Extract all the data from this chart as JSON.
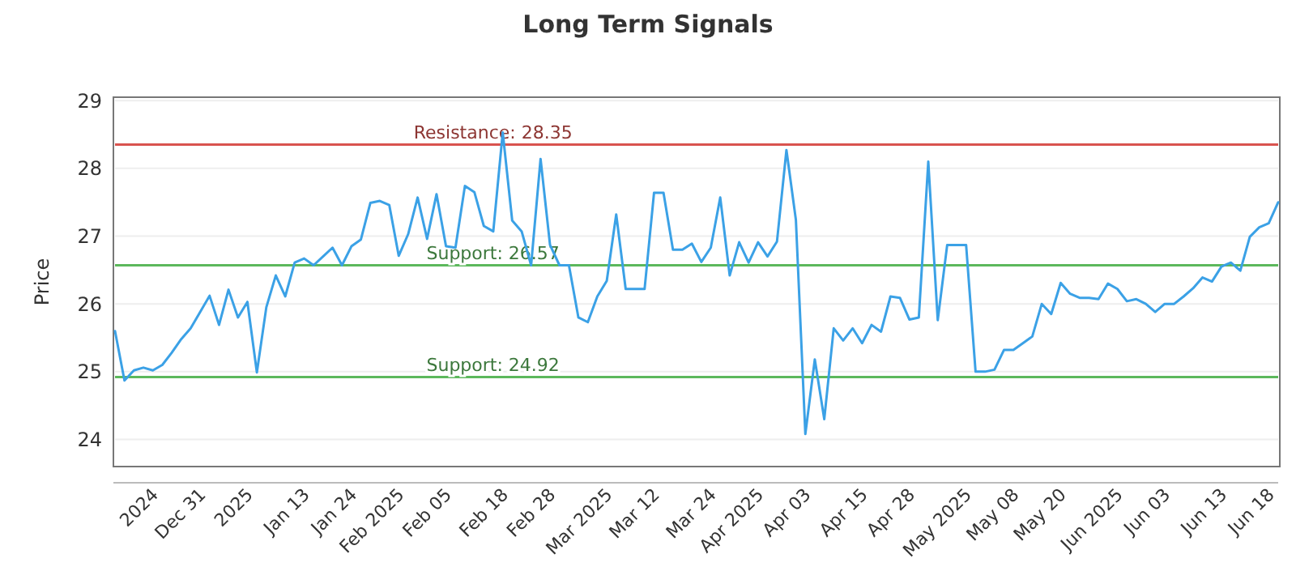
{
  "chart_data": {
    "type": "line",
    "title": "Long Term Signals",
    "ylabel": "Price",
    "categories": [
      null,
      null,
      null,
      null,
      "2024",
      null,
      null,
      null,
      null,
      "Dec 31",
      null,
      null,
      null,
      null,
      "2025",
      null,
      null,
      null,
      null,
      null,
      "Jan 13",
      null,
      null,
      null,
      null,
      "Jan 24",
      null,
      null,
      null,
      null,
      "Feb 2025",
      null,
      null,
      null,
      null,
      "Feb 05",
      null,
      null,
      null,
      null,
      null,
      "Feb 18",
      null,
      null,
      null,
      null,
      "Feb 28",
      null,
      null,
      null,
      null,
      null,
      "Mar 2025",
      null,
      null,
      null,
      null,
      "Mar 12",
      null,
      null,
      null,
      null,
      null,
      "Mar 24",
      null,
      null,
      null,
      null,
      "Apr 2025",
      null,
      null,
      null,
      null,
      "Apr 03",
      null,
      null,
      null,
      null,
      null,
      "Apr 15",
      null,
      null,
      null,
      null,
      "Apr 28",
      null,
      null,
      null,
      null,
      null,
      "May 2025",
      null,
      null,
      null,
      null,
      "May 08",
      null,
      null,
      null,
      null,
      "May 20",
      null,
      null,
      null,
      null,
      null,
      "Jun 2025",
      null,
      null,
      null,
      null,
      "Jun 03",
      null,
      null,
      null,
      null,
      null,
      "Jun 13",
      null,
      null,
      null,
      null,
      "Jun 18",
      null
    ],
    "series": [
      {
        "color": "#3ba1e6",
        "values": [
          25.6,
          24.87,
          25.02,
          25.06,
          25.02,
          25.1,
          25.28,
          25.48,
          25.64,
          25.88,
          26.12,
          25.69,
          26.21,
          25.8,
          26.03,
          24.99,
          25.95,
          26.42,
          26.11,
          26.61,
          26.67,
          26.57,
          26.7,
          26.83,
          26.57,
          26.85,
          26.95,
          27.49,
          27.52,
          27.46,
          26.71,
          27.03,
          27.57,
          26.96,
          27.62,
          26.85,
          26.83,
          27.74,
          27.65,
          27.15,
          27.07,
          28.53,
          27.23,
          27.07,
          26.57,
          28.14,
          26.87,
          26.57,
          26.57,
          25.8,
          25.73,
          26.11,
          26.34,
          27.32,
          26.22,
          26.22,
          26.22,
          27.64,
          27.64,
          26.8,
          26.8,
          26.89,
          26.62,
          26.83,
          27.57,
          26.42,
          26.91,
          26.61,
          26.91,
          26.7,
          26.92,
          28.27,
          27.24,
          24.08,
          25.18,
          24.3,
          25.64,
          25.46,
          25.64,
          25.42,
          25.69,
          25.59,
          26.11,
          26.09,
          25.77,
          25.8,
          28.1,
          25.76,
          26.87,
          26.87,
          26.87,
          25.0,
          25.0,
          25.03,
          25.32,
          25.32,
          25.42,
          25.52,
          26.0,
          25.85,
          26.31,
          26.15,
          26.09,
          26.09,
          26.07,
          26.3,
          26.22,
          26.04,
          26.07,
          26.0,
          25.88,
          26.0,
          26.0,
          26.11,
          26.23,
          26.39,
          26.33,
          26.55,
          26.61,
          26.49,
          26.99,
          27.13,
          27.19,
          27.5
        ]
      }
    ],
    "ylim": [
      23.6,
      29.05
    ],
    "yticks": [
      24,
      25,
      26,
      27,
      28,
      29
    ],
    "grid": "y",
    "marker": "none",
    "line_style": "solid",
    "ref_lines": [
      {
        "axis": "y",
        "value": 28.35,
        "label": "Resistance: 28.35",
        "color": "#d9534f"
      },
      {
        "axis": "y",
        "value": 26.57,
        "label": "Support: 26.57",
        "color": "#5cb85c"
      },
      {
        "axis": "y",
        "value": 24.92,
        "label": "Support: 24.92",
        "color": "#5cb85c"
      }
    ]
  }
}
